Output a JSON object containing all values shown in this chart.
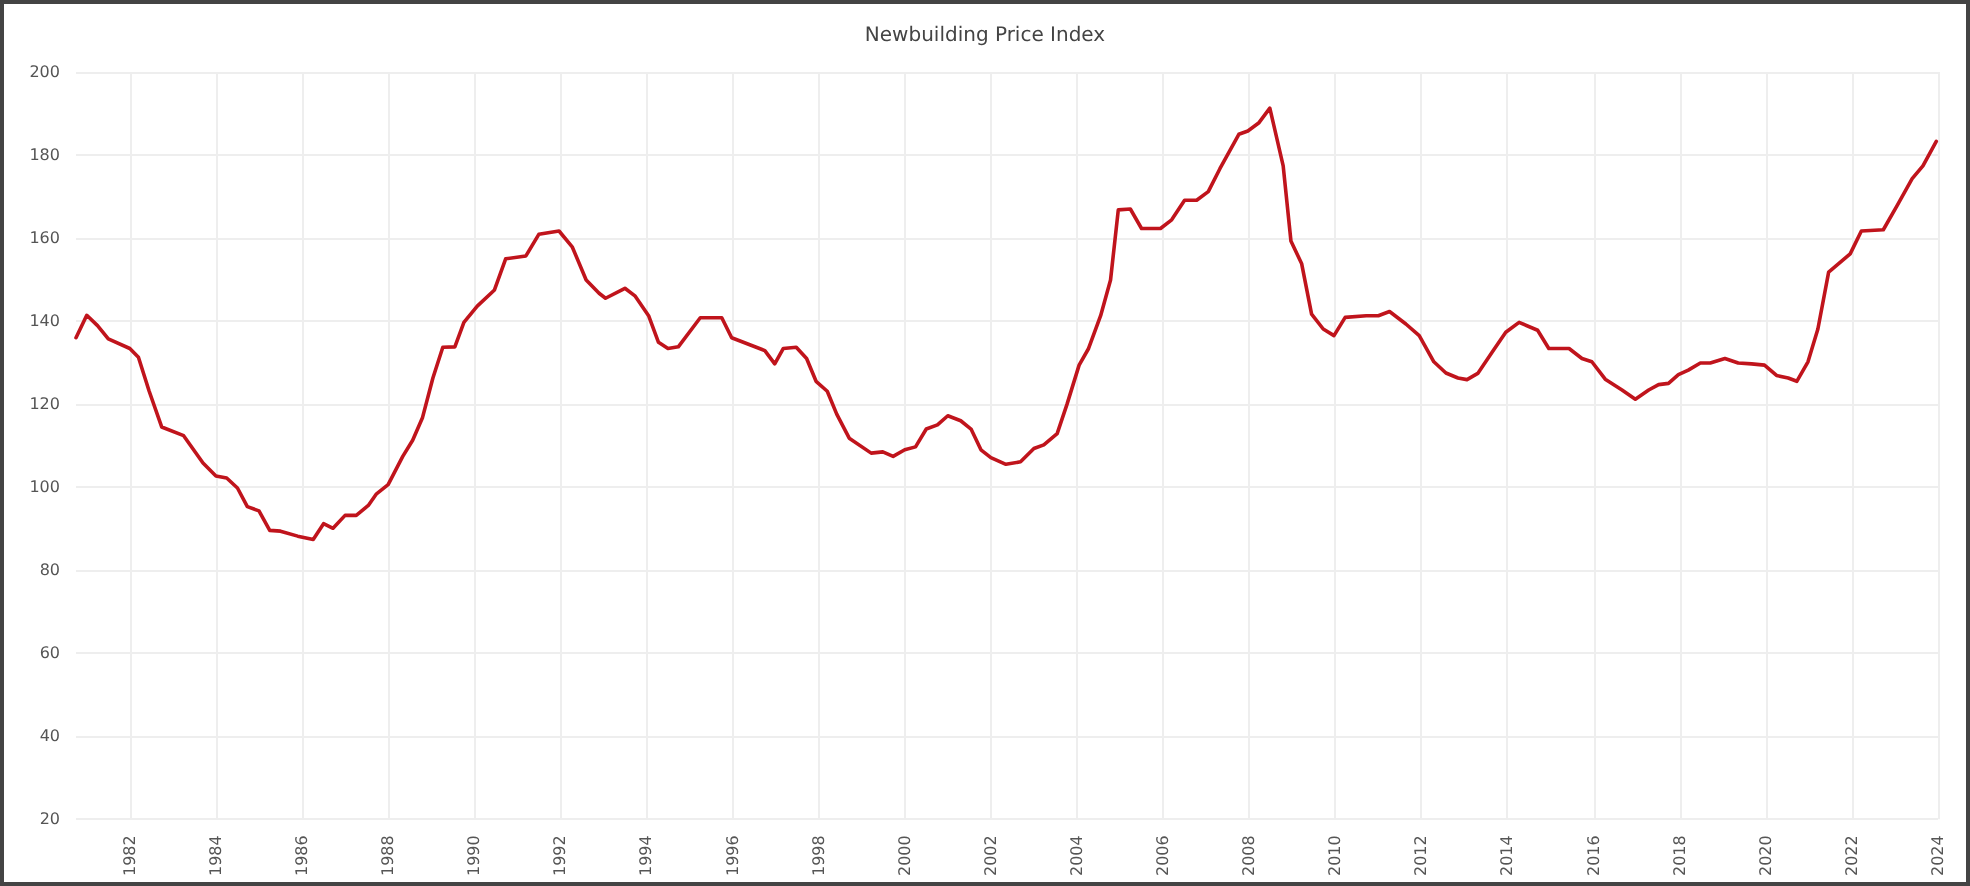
{
  "chart_data": {
    "type": "line",
    "title": "Newbuilding Price Index",
    "x": [
      1980.75,
      1981.0,
      1981.25,
      1981.5,
      1982.0,
      1982.2,
      1982.45,
      1982.74,
      1983.25,
      1983.7,
      1984.0,
      1984.25,
      1984.5,
      1984.73,
      1985.0,
      1985.25,
      1985.5,
      1985.9,
      1986.26,
      1986.5,
      1986.72,
      1987.0,
      1987.26,
      1987.54,
      1987.73,
      1988.0,
      1988.34,
      1988.57,
      1988.8,
      1989.04,
      1989.27,
      1989.55,
      1989.76,
      1990.07,
      1990.47,
      1990.73,
      1991.2,
      1991.5,
      1991.97,
      1992.28,
      1992.6,
      1992.9,
      1993.05,
      1993.5,
      1993.74,
      1994.05,
      1994.28,
      1994.5,
      1994.74,
      1995.25,
      1995.75,
      1995.98,
      1996.75,
      1996.98,
      1997.18,
      1997.48,
      1997.72,
      1997.94,
      1998.2,
      1998.42,
      1998.71,
      1999.22,
      1999.49,
      1999.73,
      2000.0,
      2000.25,
      2000.5,
      2000.76,
      2001.0,
      2001.3,
      2001.54,
      2001.77,
      2002.0,
      2002.35,
      2002.69,
      2003.0,
      2003.23,
      2003.54,
      2003.77,
      2004.05,
      2004.27,
      2004.55,
      2004.78,
      2004.96,
      2005.24,
      2005.5,
      2005.94,
      2006.2,
      2006.5,
      2006.78,
      2007.05,
      2007.32,
      2007.76,
      2007.97,
      2008.22,
      2008.48,
      2008.79,
      2008.97,
      2009.22,
      2009.45,
      2009.72,
      2009.97,
      2010.23,
      2010.72,
      2011.0,
      2011.26,
      2011.64,
      2011.95,
      2012.29,
      2012.57,
      2012.85,
      2013.06,
      2013.31,
      2013.65,
      2013.96,
      2014.27,
      2014.7,
      2014.96,
      2015.43,
      2015.73,
      2015.96,
      2016.27,
      2016.66,
      2016.97,
      2017.28,
      2017.51,
      2017.74,
      2017.97,
      2018.2,
      2018.48,
      2018.71,
      2019.05,
      2019.36,
      2019.67,
      2019.97,
      2020.25,
      2020.52,
      2020.72,
      2020.98,
      2021.21,
      2021.46,
      2021.96,
      2022.22,
      2022.73,
      2023.06,
      2023.4,
      2023.65,
      2023.96
    ],
    "series": [
      {
        "color": "#c0141c",
        "values": [
          136,
          141.4,
          138.9,
          135.7,
          133.4,
          131.3,
          123.1,
          114.5,
          112.4,
          105.8,
          102.7,
          102.2,
          99.8,
          95.3,
          94.3,
          89.6,
          89.4,
          88.2,
          87.4,
          91.2,
          90.1,
          93.2,
          93.2,
          95.6,
          98.4,
          100.6,
          107.4,
          111.3,
          116.8,
          126.3,
          133.7,
          133.8,
          139.7,
          143.6,
          147.5,
          155,
          155.7,
          160.9,
          161.7,
          157.8,
          149.9,
          146.7,
          145.5,
          147.9,
          146,
          141.3,
          134.9,
          133.4,
          133.8,
          140.8,
          140.8,
          136,
          132.9,
          129.7,
          133.4,
          133.7,
          131,
          125.5,
          123.1,
          117.6,
          111.8,
          108.2,
          108.5,
          107.4,
          109,
          109.7,
          114,
          115,
          117.2,
          116,
          114,
          109,
          107.1,
          105.5,
          106.1,
          109.3,
          110.2,
          112.9,
          120,
          129.4,
          133.4,
          141.3,
          149.9,
          166.8,
          167,
          162.3,
          162.3,
          164.4,
          169.1,
          169.1,
          171.2,
          176.7,
          185,
          185.8,
          187.7,
          191.3,
          177.4,
          159.3,
          153.8,
          141.7,
          138.1,
          136.5,
          140.9,
          141.3,
          141.3,
          142.3,
          139.3,
          136.5,
          130.2,
          127.5,
          126.3,
          125.9,
          127.4,
          132.6,
          137.3,
          139.7,
          137.8,
          133.4,
          133.4,
          131,
          130.2,
          126,
          123.4,
          121.2,
          123.4,
          124.7,
          125,
          127.1,
          128.2,
          129.9,
          129.9,
          131,
          129.9,
          129.7,
          129.4,
          126.9,
          126.3,
          125.5,
          130.2,
          138.1,
          151.8,
          156.2,
          161.7,
          162,
          168,
          174.3,
          177.4,
          183.3
        ]
      }
    ],
    "xlim": [
      1980.75,
      2024
    ],
    "xticks": [
      1982,
      1984,
      1986,
      1988,
      1990,
      1992,
      1994,
      1996,
      1998,
      2000,
      2002,
      2004,
      2006,
      2008,
      2010,
      2012,
      2014,
      2016,
      2018,
      2020,
      2022,
      2024
    ],
    "ylim": [
      20,
      200
    ],
    "yticks": [
      20,
      40,
      60,
      80,
      100,
      120,
      140,
      160,
      180,
      200
    ],
    "grid": true,
    "marker": "none",
    "line_style": "solid"
  }
}
